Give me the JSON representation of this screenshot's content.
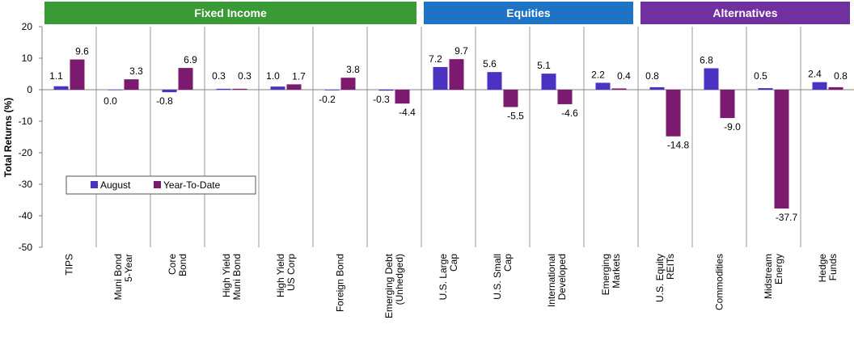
{
  "chart_data": {
    "type": "bar",
    "ylabel": "Total Returns (%)",
    "ylim": [
      -50,
      20
    ],
    "yticks": [
      20,
      10,
      0,
      -10,
      -20,
      -30,
      -40,
      -50
    ],
    "legend_position": "center-left",
    "groups": [
      {
        "name": "Fixed Income",
        "color": "#3a9a35",
        "categories": [
          0,
          1,
          2,
          3,
          4,
          5,
          6
        ]
      },
      {
        "name": "Equities",
        "color": "#1f73c4",
        "categories": [
          7,
          8,
          9,
          10
        ]
      },
      {
        "name": "Alternatives",
        "color": "#7030a0",
        "categories": [
          11,
          12,
          13,
          14
        ]
      }
    ],
    "categories": [
      [
        "TIPS"
      ],
      [
        "Muni Bond",
        "5-Year"
      ],
      [
        "Core",
        "Bond"
      ],
      [
        "High Yield",
        "Muni Bond"
      ],
      [
        "High Yield",
        "US Corp"
      ],
      [
        "Foreign Bond"
      ],
      [
        "Emerging Debt",
        "(Unhedged)"
      ],
      [
        "U.S. Large",
        "Cap"
      ],
      [
        "U.S. Small",
        "Cap"
      ],
      [
        "International",
        "Developed"
      ],
      [
        "Emerging",
        "Markets"
      ],
      [
        "U.S. Equity",
        "REITs"
      ],
      [
        "Commodities"
      ],
      [
        "Midstream",
        "Energy"
      ],
      [
        "Hedge",
        "Funds"
      ]
    ],
    "series": [
      {
        "name": "August",
        "color": "#4b32c3",
        "values": [
          1.1,
          0.0,
          -0.8,
          0.3,
          1.0,
          -0.2,
          -0.3,
          7.2,
          5.6,
          5.1,
          2.2,
          0.8,
          6.8,
          0.5,
          2.4
        ]
      },
      {
        "name": "Year-To-Date",
        "color": "#7b1a6e",
        "values": [
          9.6,
          3.3,
          6.9,
          0.3,
          1.7,
          3.8,
          -4.4,
          9.7,
          -5.5,
          -4.6,
          0.4,
          -14.8,
          -9.0,
          -37.7,
          0.8
        ]
      }
    ],
    "data_labels": {
      "August": [
        "1.1",
        "0.0",
        "-0.8",
        "0.3",
        "1.0",
        "-0.2",
        "-0.3",
        "7.2",
        "5.6",
        "5.1",
        "2.2",
        "0.8",
        "6.8",
        "0.5",
        "2.4"
      ],
      "Year-To-Date": [
        "9.6",
        "3.3",
        "6.9",
        "0.3",
        "1.7",
        "3.8",
        "-4.4",
        "9.7",
        "-5.5",
        "-4.6",
        "0.4",
        "-14.8",
        "-9.0",
        "-37.7",
        "0.8"
      ]
    }
  }
}
